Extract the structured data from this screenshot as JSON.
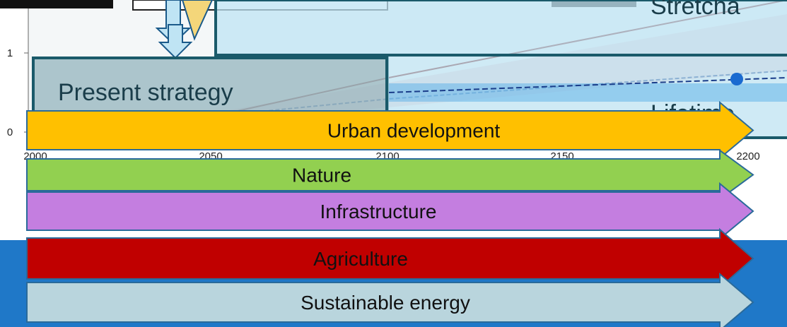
{
  "axis": {
    "y_ticks": [
      "1",
      "0"
    ],
    "x_ticks": [
      "2000",
      "2050",
      "2100",
      "2150",
      "2200"
    ]
  },
  "boxes": [
    {
      "label": "Stretcha"
    },
    {
      "label": "Present strategy"
    },
    {
      "label": "Lifetime"
    }
  ],
  "arrows": [
    {
      "label": "Urban development"
    },
    {
      "label": "Nature"
    },
    {
      "label": "Infrastructure"
    },
    {
      "label": "Agriculture"
    },
    {
      "label": "Sustainable energy"
    }
  ]
}
